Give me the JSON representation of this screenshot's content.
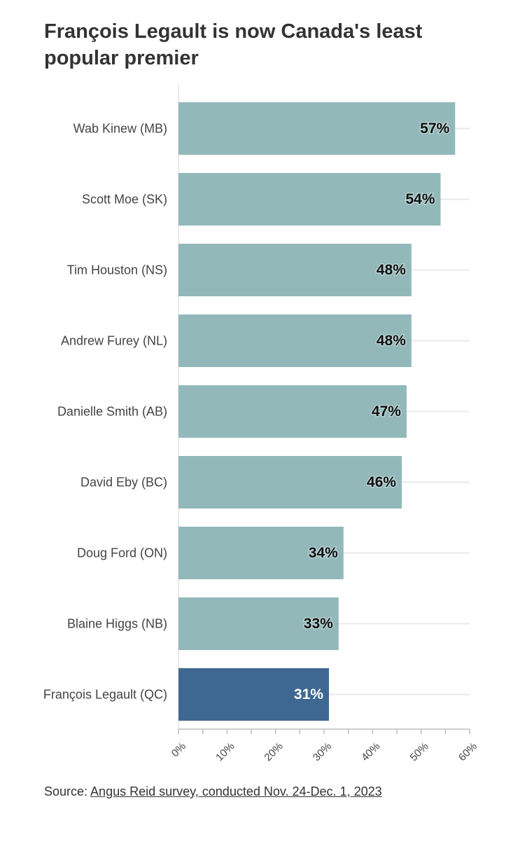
{
  "title": "François Legault is now Canada's least popular premier",
  "source": {
    "prefix": "Source: ",
    "link_text": "Angus Reid survey, conducted Nov. 24-Dec. 1, 2023"
  },
  "colors": {
    "bar": "#92b8ba",
    "highlight": "#3e6891",
    "grid": "#e9e9e9",
    "axis": "#bdbdbd"
  },
  "chart_data": {
    "type": "bar",
    "orientation": "horizontal",
    "categories": [
      "Wab Kinew (MB)",
      "Scott Moe (SK)",
      "Tim Houston (NS)",
      "Andrew Furey (NL)",
      "Danielle Smith (AB)",
      "David Eby (BC)",
      "Doug Ford (ON)",
      "Blaine Higgs (NB)",
      "François Legault (QC)"
    ],
    "values": [
      57,
      54,
      48,
      48,
      47,
      46,
      34,
      33,
      31
    ],
    "value_labels": [
      "57%",
      "54%",
      "48%",
      "48%",
      "47%",
      "46%",
      "34%",
      "33%",
      "31%"
    ],
    "highlight": "François Legault (QC)",
    "xlim": [
      0,
      60
    ],
    "xticks": [
      "0%",
      "10%",
      "20%",
      "30%",
      "40%",
      "50%",
      "60%"
    ],
    "grid": true
  }
}
